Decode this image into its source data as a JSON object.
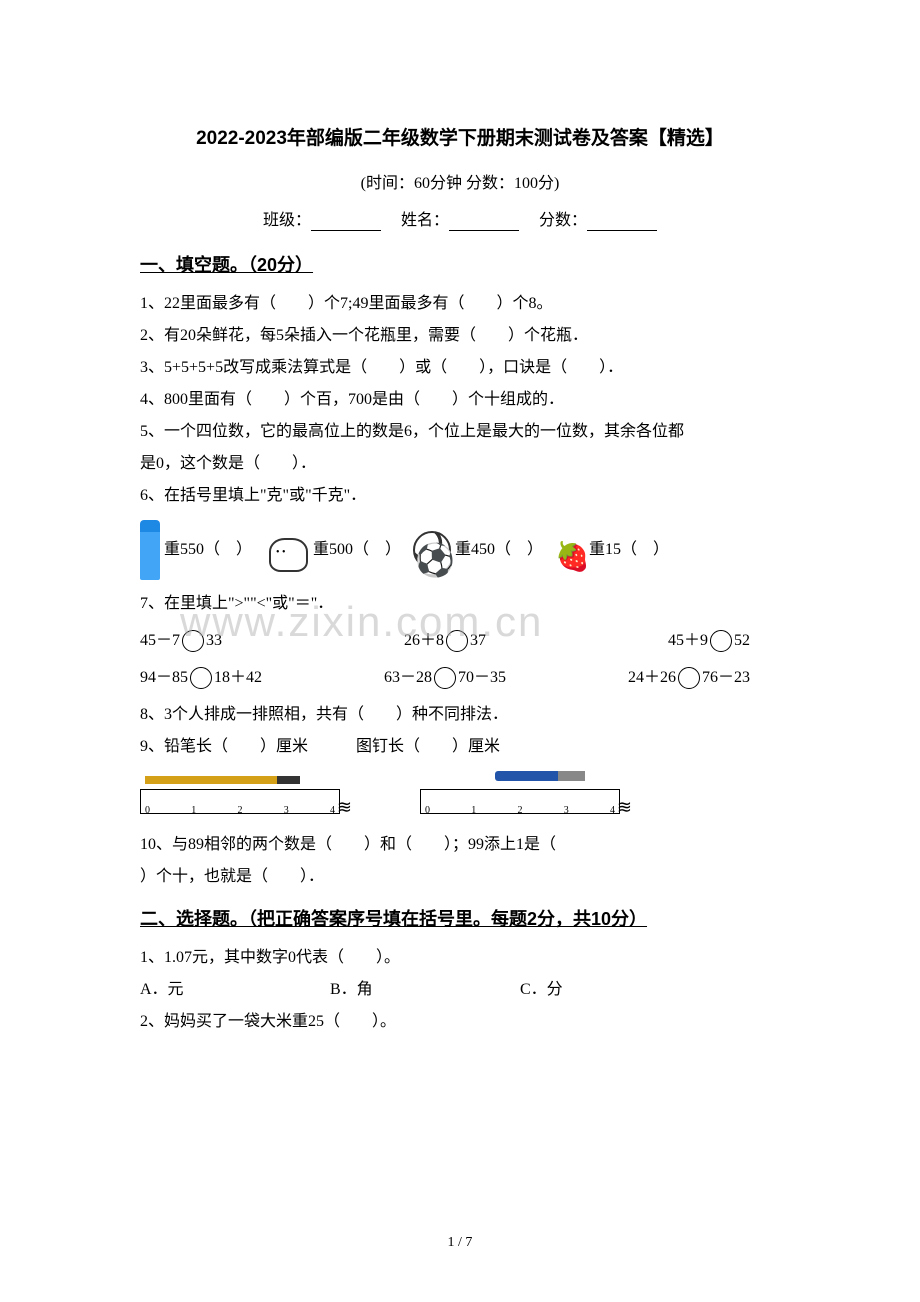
{
  "title": "2022-2023年部编版二年级数学下册期末测试卷及答案【精选】",
  "subtitle": "(时间：60分钟    分数：100分)",
  "info": {
    "class_label": "班级：",
    "name_label": "姓名：",
    "score_label": "分数："
  },
  "section1": {
    "header": "一、填空题。（20分）",
    "q1": "1、22里面最多有（　　）个7;49里面最多有（　　）个8。",
    "q2": " 2、有20朵鲜花，每5朵插入一个花瓶里，需要（　　）个花瓶．",
    "q3": "3、5+5+5+5改写成乘法算式是（　　）或（　　），口诀是（　　）．",
    "q4": "4、800里面有（　　）个百，700是由（　　）个十组成的．",
    "q5a": "5、一个四位数，它的最高位上的数是6，个位上是最大的一位数，其余各位都",
    "q5b": "是0，这个数是（　　）．",
    "q6": "6、在括号里填上\"克\"或\"千克\"．",
    "q6_items": {
      "bottle": "重550（　）",
      "cow": "重500（　）",
      "ball": "重450（　）",
      "strawberry": "重15（　）"
    },
    "q7": "7、在里填上\">\"\"<\"或\"＝\"．",
    "q7_row1": {
      "a": "45－7",
      "a2": "33",
      "b": "26＋8",
      "b2": "37",
      "c": "45＋9",
      "c2": "52"
    },
    "q7_row2": {
      "a": "94－85",
      "a2": "18＋42",
      "b": "63－28",
      "b2": "70－35",
      "c": "24＋26",
      "c2": "76－23"
    },
    "q8": "8、3个人排成一排照相，共有（　　）种不同排法．",
    "q9": "9、铅笔长（　　）厘米　　　图钉长（　　）厘米",
    "ruler_labels": [
      "0",
      "1",
      "2",
      "3",
      "4"
    ],
    "q10a": "10、与89相邻的两个数是（　　）和（　　）；99添上1是（　　",
    "q10b": "）个十，也就是（　　）．"
  },
  "section2": {
    "header": "二、选择题。（把正确答案序号填在括号里。每题2分，共10分）",
    "q1": "1、1.07元，其中数字0代表（　　）。",
    "q1_choices": {
      "a": "A．元",
      "b": "B．角",
      "c": "C．分"
    },
    "q2": "2、妈妈买了一袋大米重25（　　）。"
  },
  "watermark": "www.zixin.com.cn",
  "page_number": "1 / 7"
}
